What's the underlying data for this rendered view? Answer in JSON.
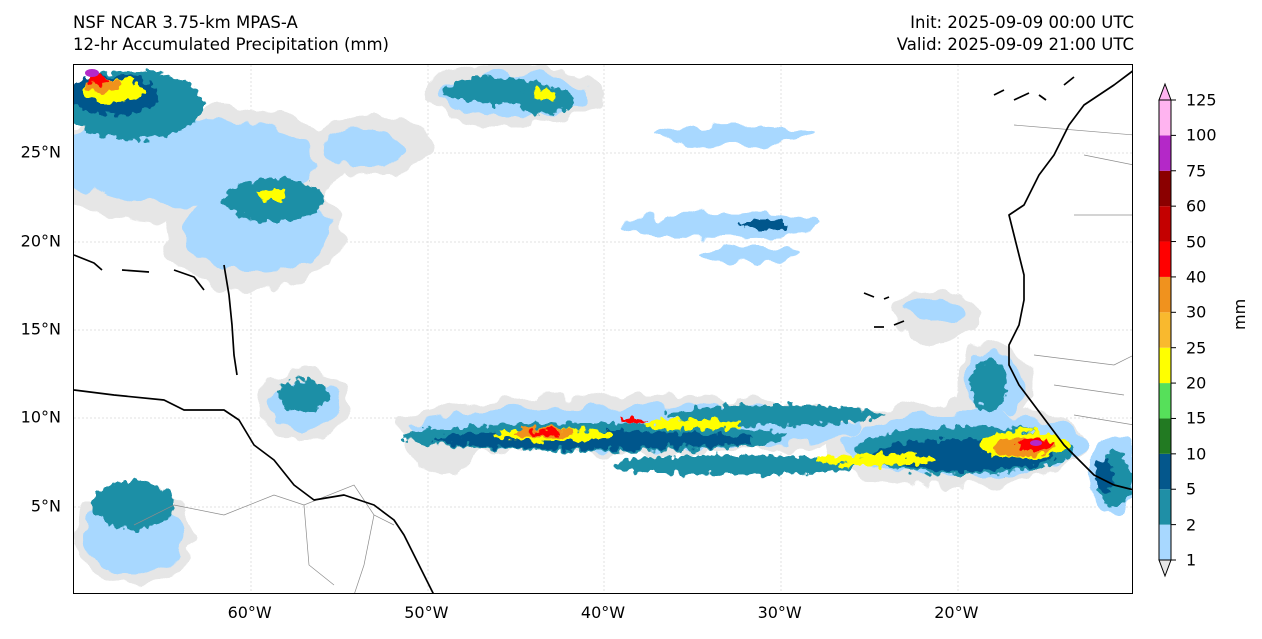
{
  "header": {
    "model": "NSF NCAR 3.75-km MPAS-A",
    "field": "12-hr Accumulated Precipitation (mm)",
    "init": "Init: 2025-09-09 00:00 UTC",
    "valid": "Valid: 2025-09-09 21:00 UTC"
  },
  "map": {
    "lon_range": [
      -70,
      -10
    ],
    "lat_range": [
      0,
      30
    ],
    "lon_ticks": [
      {
        "lon": -60,
        "label": "60°W"
      },
      {
        "lon": -50,
        "label": "50°W"
      },
      {
        "lon": -40,
        "label": "40°W"
      },
      {
        "lon": -30,
        "label": "30°W"
      },
      {
        "lon": -20,
        "label": "20°W"
      }
    ],
    "lat_ticks": [
      {
        "lat": 25,
        "label": "25°N"
      },
      {
        "lat": 20,
        "label": "20°N"
      },
      {
        "lat": 15,
        "label": "15°N"
      },
      {
        "lat": 10,
        "label": "10°N"
      },
      {
        "lat": 5,
        "label": "5°N"
      }
    ],
    "colors": {
      "coastline": "#000000",
      "borders": "#8c8c8c",
      "gridlines": "#e0e0e0"
    }
  },
  "colorbar": {
    "unit": "mm",
    "levels": [
      {
        "label": "1",
        "color": "#e6e6e6"
      },
      {
        "label": "2",
        "color": "#a8d8ff"
      },
      {
        "label": "5",
        "color": "#1f8fa6"
      },
      {
        "label": "10",
        "color": "#04578c"
      },
      {
        "label": "15",
        "color": "#227a22"
      },
      {
        "label": "20",
        "color": "#56e05a"
      },
      {
        "label": "25",
        "color": "#ffff00"
      },
      {
        "label": "30",
        "color": "#f9b92e"
      },
      {
        "label": "40",
        "color": "#f0921e"
      },
      {
        "label": "50",
        "color": "#ff0000"
      },
      {
        "label": "60",
        "color": "#c40000"
      },
      {
        "label": "75",
        "color": "#8b0000"
      },
      {
        "label": "100",
        "color": "#b428c8"
      },
      {
        "label": "125",
        "color": "#ffb4f0"
      }
    ]
  }
}
